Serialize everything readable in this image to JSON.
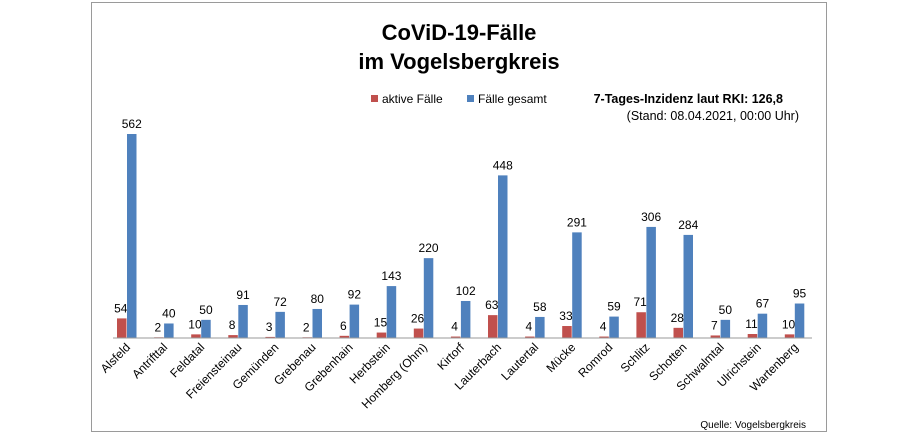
{
  "chart_data": {
    "type": "bar",
    "title_line1": "CoViD-19-Fälle",
    "title_line2": "im Vogelsbergkreis",
    "incidence_note": "7-Tages-Inzidenz laut RKI: 126,8",
    "date_note": "(Stand: 08.04.2021, 00:00 Uhr)",
    "source": "Quelle: Vogelsbergkreis",
    "legend_position": "top-center",
    "grid": false,
    "ylim": [
      0,
      600
    ],
    "categories": [
      "Alsfeld",
      "Antrifttal",
      "Feldatal",
      "Freiensteinau",
      "Gemünden",
      "Grebenau",
      "Grebenhain",
      "Herbstein",
      "Homberg (Ohm)",
      "Kirtorf",
      "Lauterbach",
      "Lautertal",
      "Mücke",
      "Romrod",
      "Schlitz",
      "Schotten",
      "Schwalmtal",
      "Ulrichstein",
      "Wartenberg"
    ],
    "series": [
      {
        "name": "aktive Fälle",
        "color": "#c0504d",
        "values": [
          54,
          2,
          10,
          8,
          3,
          2,
          6,
          15,
          26,
          4,
          63,
          4,
          33,
          4,
          71,
          28,
          7,
          11,
          10
        ]
      },
      {
        "name": "Fälle gesamt",
        "color": "#4f81bd",
        "values": [
          562,
          40,
          50,
          91,
          72,
          80,
          92,
          143,
          220,
          102,
          448,
          58,
          291,
          59,
          306,
          284,
          50,
          67,
          95
        ]
      }
    ]
  }
}
